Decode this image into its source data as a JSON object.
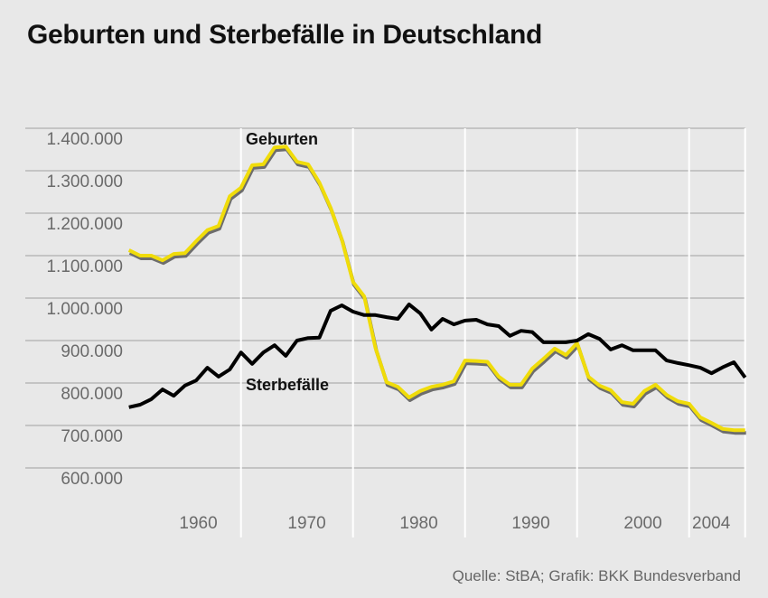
{
  "chart_data": {
    "type": "line",
    "title": "Geburten und Sterbefälle in Deutschland",
    "source": "Quelle: StBA; Grafik: BKK Bundesverband",
    "xlabel": "",
    "ylabel": "",
    "x": [
      1950,
      1951,
      1952,
      1953,
      1954,
      1955,
      1956,
      1957,
      1958,
      1959,
      1960,
      1961,
      1962,
      1963,
      1964,
      1965,
      1966,
      1967,
      1968,
      1969,
      1970,
      1971,
      1972,
      1973,
      1974,
      1975,
      1976,
      1977,
      1978,
      1979,
      1980,
      1981,
      1982,
      1983,
      1984,
      1985,
      1986,
      1987,
      1988,
      1989,
      1990,
      1991,
      1992,
      1993,
      1994,
      1995,
      1996,
      1997,
      1998,
      1999,
      2000,
      2001,
      2002,
      2003,
      2004,
      2005
    ],
    "xlim": [
      1950,
      2005
    ],
    "ylim": [
      600000,
      1400000
    ],
    "x_ticks": [
      1960,
      1970,
      1980,
      1990,
      2000,
      2004
    ],
    "x_tick_labels": [
      "1960",
      "1970",
      "1980",
      "1990",
      "2000",
      "2004"
    ],
    "y_ticks": [
      1400000,
      1300000,
      1200000,
      1100000,
      1000000,
      900000,
      800000,
      700000,
      600000
    ],
    "y_tick_labels": [
      "1.400.000",
      "1.300.000",
      "1.200.000",
      "1.100.000",
      "1.000.000",
      "900.000",
      "800.000",
      "700.000",
      "600.000"
    ],
    "grid": true,
    "series": [
      {
        "name": "Geburten",
        "color": "#f0dc0a",
        "values": [
          1113000,
          1100000,
          1100000,
          1089000,
          1104000,
          1106000,
          1134000,
          1160000,
          1170000,
          1240000,
          1260000,
          1313000,
          1315000,
          1355000,
          1357000,
          1321000,
          1315000,
          1272000,
          1213000,
          1138000,
          1038000,
          1004000,
          883000,
          802000,
          791000,
          766000,
          781000,
          791000,
          796000,
          804000,
          853000,
          852000,
          850000,
          815000,
          796000,
          796000,
          834000,
          857000,
          881000,
          866000,
          894000,
          815000,
          794000,
          783000,
          755000,
          751000,
          781000,
          796000,
          772000,
          757000,
          751000,
          719000,
          706000,
          692000,
          689000,
          689000
        ]
      },
      {
        "name": "Sterbefälle",
        "color": "#000000",
        "values": [
          743000,
          749000,
          762000,
          785000,
          770000,
          794000,
          806000,
          836000,
          815000,
          832000,
          872000,
          845000,
          872000,
          889000,
          864000,
          900000,
          906000,
          907000,
          970000,
          983000,
          968000,
          960000,
          960000,
          955000,
          951000,
          985000,
          964000,
          926000,
          951000,
          938000,
          947000,
          949000,
          938000,
          934000,
          911000,
          923000,
          920000,
          896000,
          896000,
          896000,
          900000,
          915000,
          904000,
          879000,
          889000,
          877000,
          877000,
          877000,
          853000,
          847000,
          842000,
          836000,
          823000,
          837000,
          849000,
          813000
        ]
      }
    ]
  }
}
